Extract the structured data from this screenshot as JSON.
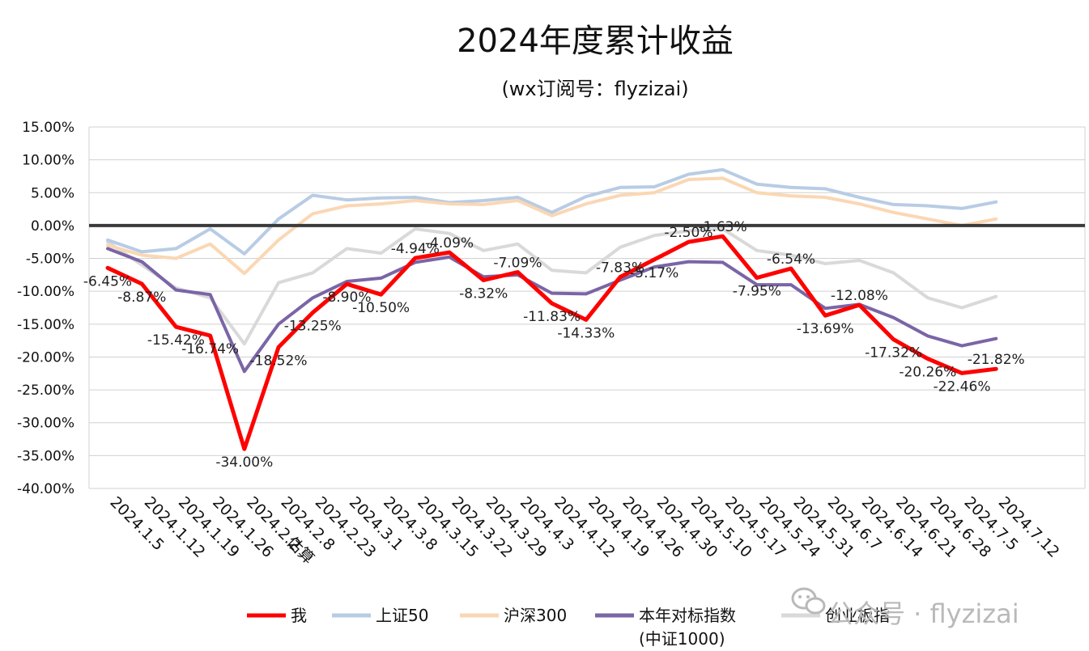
{
  "chart_data": {
    "type": "line",
    "title": "2024年度累计收益",
    "subtitle": "(wx订阅号：flyzizai)",
    "ylim": [
      -40,
      15
    ],
    "ytick_labels": [
      "15.00%",
      "10.00%",
      "5.00%",
      "0.00%",
      "-5.00%",
      "-10.00%",
      "-15.00%",
      "-20.00%",
      "-25.00%",
      "-30.00%",
      "-35.00%",
      "-40.00%"
    ],
    "categories": [
      "2024.1.5",
      "2024.1.12",
      "2024.1.19",
      "2024.1.26",
      "2024.2.2",
      "2024.2.8",
      "2024.2.23",
      "2024.3.1",
      "2024.3.8",
      "2024.3.15",
      "2024.3.22",
      "2024.3.29",
      "2024.4.3",
      "2024.4.12",
      "2024.4.19",
      "2024.4.26",
      "2024.4.30",
      "2024.5.10",
      "2024.5.17",
      "2024.5.24",
      "2024.5.31",
      "2024.6.7",
      "2024.6.14",
      "2024.6.21",
      "2024.6.28",
      "2024.7.5",
      "2024.7.12"
    ],
    "x_note": "估算",
    "series": [
      {
        "name": "创业板指",
        "color": "#d9d9d9",
        "values": [
          -2.5,
          -6.0,
          -9.5,
          -11.0,
          -18.0,
          -8.7,
          -7.2,
          -3.5,
          -4.2,
          -0.5,
          -1.2,
          -3.8,
          -2.8,
          -6.8,
          -7.2,
          -3.3,
          -1.5,
          -0.8,
          -0.5,
          -3.8,
          -4.5,
          -5.8,
          -5.3,
          -7.2,
          -11.0,
          -12.5,
          -10.8
        ]
      },
      {
        "name": "上证50",
        "color": "#b8cce4",
        "values": [
          -2.2,
          -4.0,
          -3.5,
          -0.5,
          -4.3,
          1.0,
          4.6,
          3.9,
          4.2,
          4.3,
          3.5,
          3.8,
          4.3,
          2.0,
          4.4,
          5.8,
          5.9,
          7.8,
          8.5,
          6.3,
          5.8,
          5.6,
          4.3,
          3.2,
          3.0,
          2.6,
          3.6
        ]
      },
      {
        "name": "沪深300",
        "color": "#fad7b4",
        "values": [
          -3.0,
          -4.5,
          -5.0,
          -2.8,
          -7.3,
          -2.2,
          1.8,
          3.0,
          3.3,
          3.8,
          3.3,
          3.2,
          3.8,
          1.5,
          3.3,
          4.6,
          5.0,
          7.0,
          7.2,
          5.0,
          4.5,
          4.3,
          3.3,
          2.0,
          1.0,
          0.0,
          1.0
        ]
      },
      {
        "name": "本年对标指数",
        "name2": "(中证1000)",
        "color": "#7a65a6",
        "values": [
          -3.5,
          -5.5,
          -9.8,
          -10.5,
          -22.2,
          -15.0,
          -11.0,
          -8.5,
          -8.0,
          -5.6,
          -4.8,
          -7.8,
          -7.5,
          -10.3,
          -10.4,
          -8.3,
          -6.3,
          -5.5,
          -5.6,
          -9.0,
          -9.0,
          -12.6,
          -12.0,
          -14.0,
          -16.8,
          -18.3,
          -17.2
        ]
      },
      {
        "name": "我",
        "color": "#ff0000",
        "values": [
          -6.45,
          -8.87,
          -15.42,
          -16.74,
          -34.0,
          -18.52,
          -13.25,
          -8.9,
          -10.5,
          -4.94,
          -4.09,
          -8.32,
          -7.09,
          -11.83,
          -14.33,
          -7.83,
          -5.17,
          -2.5,
          -1.63,
          -7.95,
          -6.54,
          -13.69,
          -12.08,
          -17.32,
          -20.26,
          -22.46,
          -21.82
        ]
      }
    ],
    "data_labels": [
      "-6.45%",
      "-8.87%",
      "-15.42%",
      "-16.74%",
      "-34.00%",
      "-18.52%",
      "-13.25%",
      "-8.90%",
      "-10.50%",
      "-4.94%",
      "-4.09%",
      "-8.32%",
      "-7.09%",
      "-11.83%",
      "-14.33%",
      "-7.83%",
      "-5.17%",
      "-2.50%",
      "-1.63%",
      "-7.95%",
      "-6.54%",
      "-13.69%",
      "-12.08%",
      "-17.32%",
      "-20.26%",
      "-22.46%",
      "-21.82%"
    ],
    "legend": {
      "placement": "bottom",
      "items": [
        {
          "label": "我",
          "color": "#ff0000"
        },
        {
          "label": "上证50",
          "color": "#b8cce4"
        },
        {
          "label": "沪深300",
          "color": "#fad7b4"
        },
        {
          "label": "本年对标指数",
          "label2": "(中证1000)",
          "color": "#7a65a6"
        },
        {
          "label": "创业板指",
          "color": "#d9d9d9"
        }
      ]
    },
    "grid": true
  },
  "watermark": "公众号 · flyzizai",
  "watermark_icon": "wechat-icon"
}
